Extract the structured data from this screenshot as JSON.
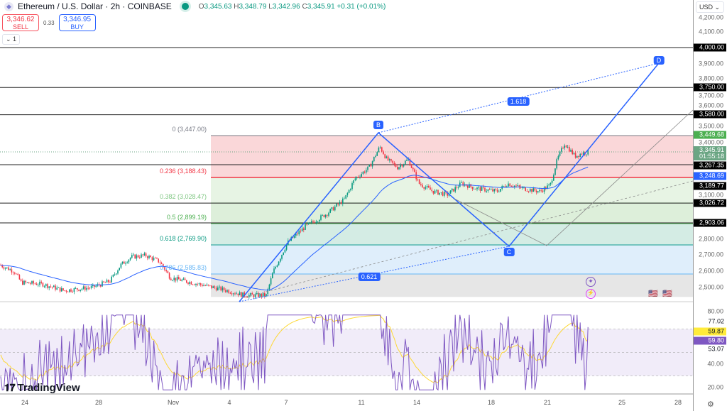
{
  "header": {
    "symbol": "Ethereum / U.S. Dollar · 2h · COINBASE",
    "open_label": "O",
    "open": "3,345.63",
    "high_label": "H",
    "high": "3,348.79",
    "low_label": "L",
    "low": "3,342.96",
    "close_label": "C",
    "close": "3,345.91",
    "change": "+0.31 (+0.01%)"
  },
  "trade": {
    "sell_price": "3,346.62",
    "sell_label": "SELL",
    "spread": "0.33",
    "buy_price": "3,346.95",
    "buy_label": "BUY"
  },
  "collapse": {
    "label": "⌄ 1"
  },
  "currency": "USD",
  "price_axis": [
    "4,200.00",
    "4,100.00",
    "3,900.00",
    "3,800.00",
    "3,700.00",
    "3,600.00",
    "3,500.00",
    "3,400.00",
    "3,100.00",
    "2,800.00",
    "2,700.00",
    "2,600.00",
    "2,500.00"
  ],
  "price_tags": [
    {
      "value": "4,000.00",
      "color": "#000000"
    },
    {
      "value": "3,750.00",
      "color": "#000000"
    },
    {
      "value": "3,580.00",
      "color": "#000000"
    },
    {
      "value": "3,449.68",
      "color": "#4caf50"
    },
    {
      "value": "3,345.91\n01:55:18",
      "color": "#6aa583"
    },
    {
      "value": "3,267.35",
      "color": "#000000"
    },
    {
      "value": "3,248.69",
      "color": "#2962ff"
    },
    {
      "value": "3,189.77",
      "color": "#000000"
    },
    {
      "value": "3,026.72",
      "color": "#000000"
    },
    {
      "value": "2,903.06",
      "color": "#000000"
    }
  ],
  "rsi_axis": [
    "80.00",
    "40.00",
    "20.00"
  ],
  "rsi_tags": [
    {
      "value": "77.02",
      "color": "#ffffff",
      "text": "#131722"
    },
    {
      "value": "59.87",
      "color": "#ffeb3b",
      "text": "#131722"
    },
    {
      "value": "59.80",
      "color": "#7e57c2",
      "text": "#ffffff"
    },
    {
      "value": "53.07",
      "color": "#ffffff",
      "text": "#131722"
    }
  ],
  "time_axis": [
    "24",
    "28",
    "Nov",
    "4",
    "7",
    "11",
    "14",
    "18",
    "21",
    "25",
    "28"
  ],
  "fib_levels": [
    {
      "label": "0 (3,447.00)",
      "color": "#787b86"
    },
    {
      "label": "0.236 (3,188.43)",
      "color": "#f23645"
    },
    {
      "label": "0.382 (3,028.47)",
      "color": "#81c784"
    },
    {
      "label": "0.5 (2,899.19)",
      "color": "#4caf50"
    },
    {
      "label": "0.618 (2,769.90)",
      "color": "#089981"
    },
    {
      "label": "0.786 (2,585.83)",
      "color": "#64b5f6"
    }
  ],
  "pattern_points": [
    "B",
    "C",
    "D"
  ],
  "pattern_ratios": [
    "1.618",
    "0.621"
  ],
  "brand": "TradingView",
  "colors": {
    "up": "#089981",
    "down": "#f23645",
    "pattern": "#2962ff",
    "ma": "#2962ff",
    "rsi": "#7e57c2",
    "rsi_ma": "#fdd835"
  }
}
